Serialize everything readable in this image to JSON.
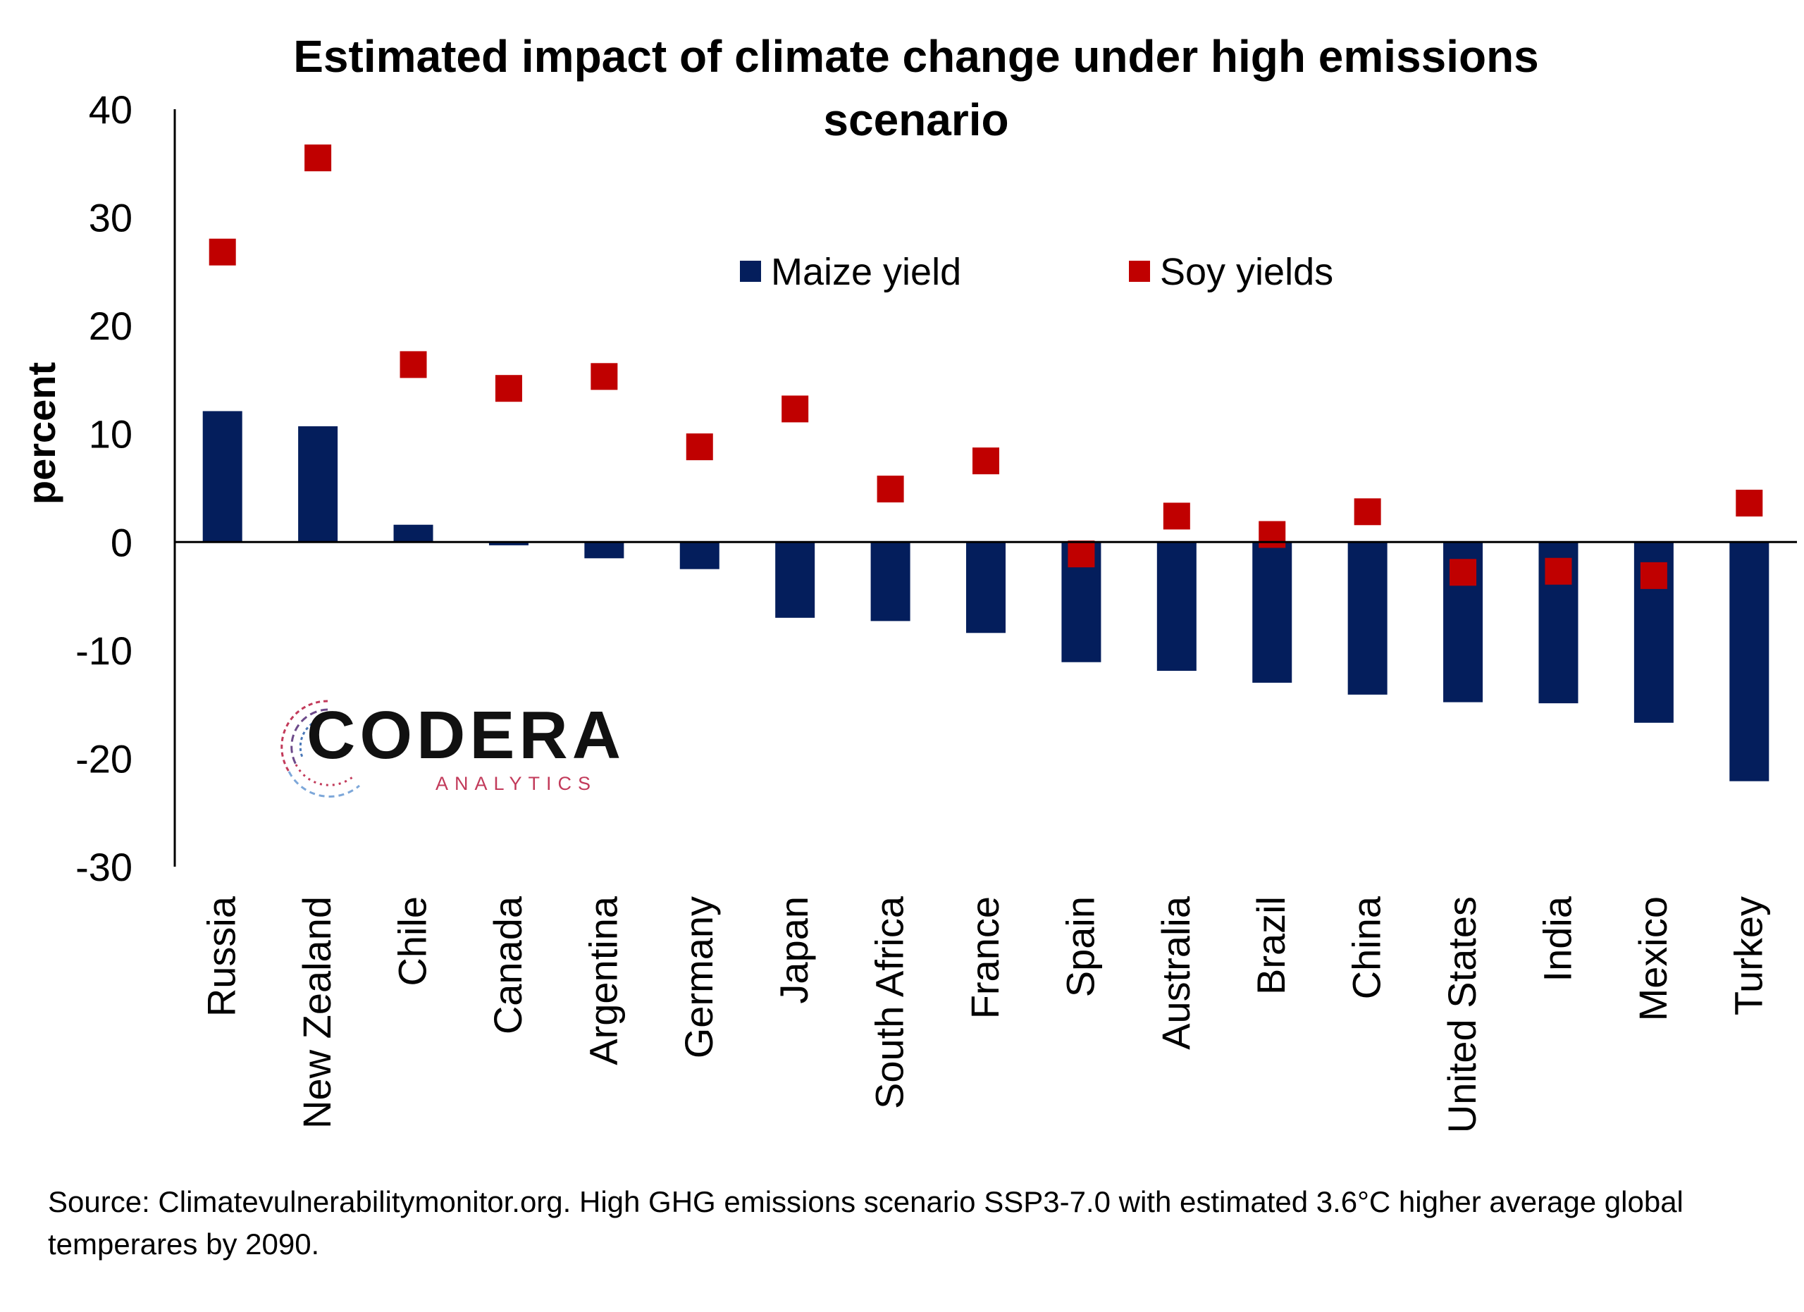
{
  "chart_data": {
    "type": "bar",
    "title_line1": "Estimated impact of climate change under high emissions",
    "title_line2": "scenario",
    "ylabel": "percent",
    "xlabel": "",
    "ylim": [
      -30,
      40
    ],
    "yticks": [
      40,
      30,
      20,
      10,
      0,
      -10,
      -20,
      -30
    ],
    "categories": [
      "Russia",
      "New Zealand",
      "Chile",
      "Canada",
      "Argentina",
      "Germany",
      "Japan",
      "South Africa",
      "France",
      "Spain",
      "Australia",
      "Brazil",
      "China",
      "United States",
      "India",
      "Mexico",
      "Turkey"
    ],
    "series": [
      {
        "name": "Maize yield",
        "kind": "bar",
        "color": "#041e5c",
        "values": [
          12.1,
          10.7,
          1.6,
          -0.3,
          -1.5,
          -2.5,
          -7.0,
          -7.3,
          -8.4,
          -11.1,
          -11.9,
          -13.0,
          -14.1,
          -14.8,
          -14.9,
          -16.7,
          -22.1
        ]
      },
      {
        "name": "Soy yields",
        "kind": "marker",
        "color": "#c00000",
        "values": [
          26.8,
          35.5,
          16.4,
          14.2,
          15.3,
          8.8,
          12.3,
          4.9,
          7.5,
          -1.1,
          2.4,
          0.7,
          2.8,
          -2.8,
          -2.7,
          -3.1,
          3.6
        ]
      }
    ],
    "legend_position": "top-center",
    "grid": false
  },
  "logo": {
    "name": "CODERA",
    "sub": "ANALYTICS"
  },
  "source": "Source: Climatevulnerabilitymonitor.org. High GHG emissions scenario SSP3-7.0 with estimated 3.6°C higher average global temperares by 2090."
}
